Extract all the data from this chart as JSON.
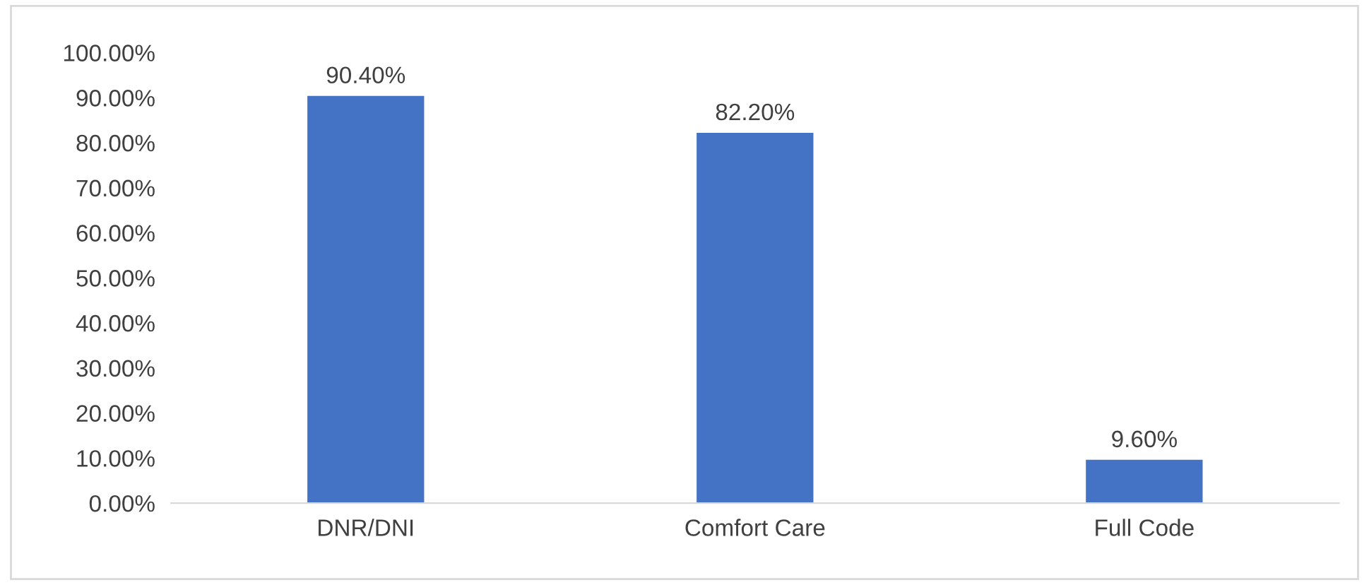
{
  "chart_data": {
    "type": "bar",
    "categories": [
      "DNR/DNI",
      "Comfort Care",
      "Full Code"
    ],
    "values": [
      90.4,
      82.2,
      9.6
    ],
    "value_labels": [
      "90.40%",
      "82.20%",
      "9.60%"
    ],
    "color": "#4472c4",
    "ylim": [
      0,
      100
    ],
    "yticks": [
      {
        "value": 0,
        "label": "0.00%"
      },
      {
        "value": 10,
        "label": "10.00%"
      },
      {
        "value": 20,
        "label": "20.00%"
      },
      {
        "value": 30,
        "label": "30.00%"
      },
      {
        "value": 40,
        "label": "40.00%"
      },
      {
        "value": 50,
        "label": "50.00%"
      },
      {
        "value": 60,
        "label": "60.00%"
      },
      {
        "value": 70,
        "label": "70.00%"
      },
      {
        "value": 80,
        "label": "80.00%"
      },
      {
        "value": 90,
        "label": "90.00%"
      },
      {
        "value": 100,
        "label": "100.00%"
      }
    ],
    "grid": false
  }
}
